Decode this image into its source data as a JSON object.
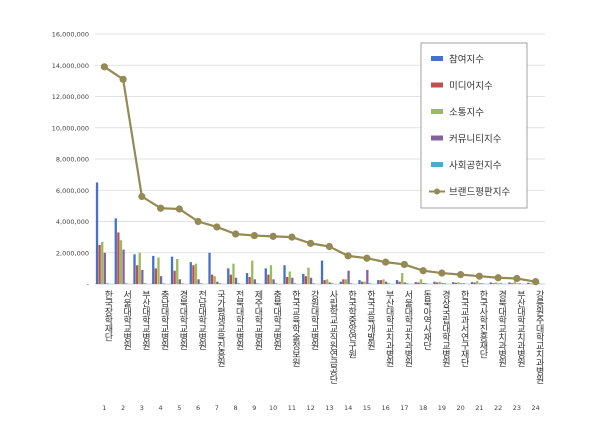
{
  "chart_data": {
    "type": "bar",
    "y_ticks": [
      "-",
      "2,000,000",
      "4,000,000",
      "6,000,000",
      "8,000,000",
      "10,000,000",
      "12,000,000",
      "14,000,000",
      "16,000,000"
    ],
    "ylim": [
      0,
      16000000
    ],
    "grid": true,
    "legend_position": "right",
    "categories": [
      {
        "num": "1",
        "name": "한국장학재단"
      },
      {
        "num": "2",
        "name": "서울대학교병원"
      },
      {
        "num": "3",
        "name": "부산대학교병원"
      },
      {
        "num": "4",
        "name": "충남대학교병원"
      },
      {
        "num": "5",
        "name": "경북대학교병원"
      },
      {
        "num": "6",
        "name": "전남대학교병원"
      },
      {
        "num": "7",
        "name": "국가평생교육진흥원"
      },
      {
        "num": "8",
        "name": "전북대학교병원"
      },
      {
        "num": "9",
        "name": "제주대학교병원"
      },
      {
        "num": "10",
        "name": "충북대학교병원"
      },
      {
        "num": "11",
        "name": "한국교육학술정보원"
      },
      {
        "num": "12",
        "name": "강원대학교병원"
      },
      {
        "num": "13",
        "name": "사립학교교직원연금공단"
      },
      {
        "num": "14",
        "name": "한국학중앙연구원"
      },
      {
        "num": "15",
        "name": "한국교육개발원"
      },
      {
        "num": "16",
        "name": "부산대학교치과병원"
      },
      {
        "num": "17",
        "name": "서울대학교치과병원"
      },
      {
        "num": "18",
        "name": "동북아역사재단"
      },
      {
        "num": "19",
        "name": "경상국립대학교병원"
      },
      {
        "num": "20",
        "name": "한국교과서연구재단"
      },
      {
        "num": "21",
        "name": "한국사학진흥재단"
      },
      {
        "num": "22",
        "name": "경북대학교치과병원"
      },
      {
        "num": "23",
        "name": "부산대학교치과병원"
      },
      {
        "num": "24",
        "name": "강릉원주대학교치과병원"
      }
    ],
    "series": [
      {
        "name": "참여지수",
        "color": "#4472c4",
        "kind": "bar",
        "values": [
          6500000,
          4200000,
          1900000,
          1800000,
          1750000,
          1400000,
          2000000,
          1000000,
          700000,
          1000000,
          1200000,
          650000,
          1500000,
          150000,
          250000,
          250000,
          250000,
          120000,
          150000,
          120000,
          120000,
          100000,
          100000,
          80000
        ]
      },
      {
        "name": "미디어지수",
        "color": "#c0504d",
        "kind": "bar",
        "values": [
          2500000,
          3300000,
          1200000,
          1000000,
          850000,
          1200000,
          600000,
          600000,
          450000,
          600000,
          450000,
          500000,
          250000,
          300000,
          150000,
          250000,
          150000,
          100000,
          100000,
          80000,
          100000,
          50000,
          50000,
          30000
        ]
      },
      {
        "name": "소통지수",
        "color": "#9bbb59",
        "kind": "bar",
        "values": [
          2700000,
          2800000,
          2000000,
          1700000,
          1600000,
          1300000,
          500000,
          1300000,
          1500000,
          1200000,
          800000,
          1050000,
          300000,
          300000,
          150000,
          300000,
          700000,
          300000,
          150000,
          120000,
          200000,
          100000,
          150000,
          40000
        ]
      },
      {
        "name": "커뮤니티지수",
        "color": "#8064a2",
        "kind": "bar",
        "values": [
          2000000,
          2200000,
          900000,
          500000,
          300000,
          300000,
          150000,
          400000,
          300000,
          300000,
          400000,
          400000,
          100000,
          850000,
          900000,
          150000,
          100000,
          60000,
          50000,
          40000,
          40000,
          30000,
          30000,
          20000
        ]
      },
      {
        "name": "사회공헌지수",
        "color": "#4bacc6",
        "kind": "bar",
        "values": [
          50000,
          50000,
          50000,
          50000,
          50000,
          50000,
          50000,
          50000,
          50000,
          50000,
          50000,
          50000,
          50000,
          50000,
          50000,
          50000,
          50000,
          50000,
          50000,
          50000,
          50000,
          50000,
          50000,
          50000
        ]
      },
      {
        "name": "브랜드평판지수",
        "color": "#948a54",
        "kind": "line",
        "values": [
          13900000,
          13100000,
          5600000,
          4850000,
          4800000,
          4000000,
          3650000,
          3200000,
          3100000,
          3050000,
          3000000,
          2600000,
          2400000,
          1800000,
          1650000,
          1400000,
          1250000,
          850000,
          700000,
          600000,
          500000,
          400000,
          350000,
          150000
        ]
      }
    ]
  }
}
